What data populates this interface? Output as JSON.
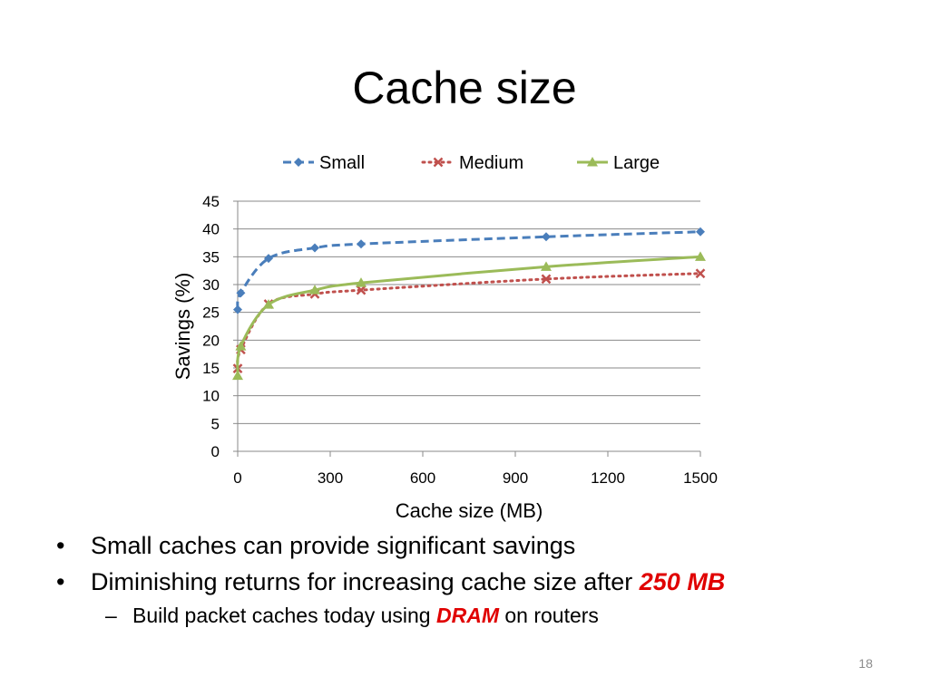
{
  "slide": {
    "title": "Cache size",
    "bullets": [
      {
        "text": "Small caches can provide significant savings",
        "highlight": ""
      },
      {
        "text": "Diminishing returns for increasing cache size after ",
        "highlight": "250 MB"
      }
    ],
    "sub_bullet": {
      "before": "Build packet caches today using ",
      "highlight": "DRAM",
      "after": " on routers"
    },
    "page_number": "18"
  },
  "chart_data": {
    "type": "line",
    "title": "",
    "xlabel": "Cache size (MB)",
    "ylabel": "Savings (%)",
    "xlim": [
      0,
      1500
    ],
    "ylim": [
      0,
      45
    ],
    "x_ticks": [
      0,
      300,
      600,
      900,
      1200,
      1500
    ],
    "y_ticks": [
      0,
      5,
      10,
      15,
      20,
      25,
      30,
      35,
      40,
      45
    ],
    "grid": "horizontal",
    "legend_position": "top",
    "series": [
      {
        "name": "Small",
        "color": "#4a7ebb",
        "marker": "diamond",
        "line": "dashed",
        "smooth": true,
        "x": [
          0,
          10,
          100,
          250,
          400,
          1000,
          1500
        ],
        "y": [
          25.5,
          28.5,
          34.7,
          36.6,
          37.3,
          38.6,
          39.5
        ]
      },
      {
        "name": "Medium",
        "color": "#c0504d",
        "marker": "x",
        "line": "dotted",
        "smooth": true,
        "x": [
          0,
          10,
          100,
          250,
          400,
          1000,
          1500
        ],
        "y": [
          14.9,
          18.3,
          26.5,
          28.3,
          29.0,
          31.0,
          32.0
        ]
      },
      {
        "name": "Large",
        "color": "#9bbb59",
        "marker": "triangle",
        "line": "solid",
        "smooth": true,
        "x": [
          0,
          10,
          100,
          250,
          400,
          1000,
          1500
        ],
        "y": [
          13.6,
          18.9,
          26.4,
          29.0,
          30.3,
          33.2,
          35.0
        ]
      }
    ]
  }
}
